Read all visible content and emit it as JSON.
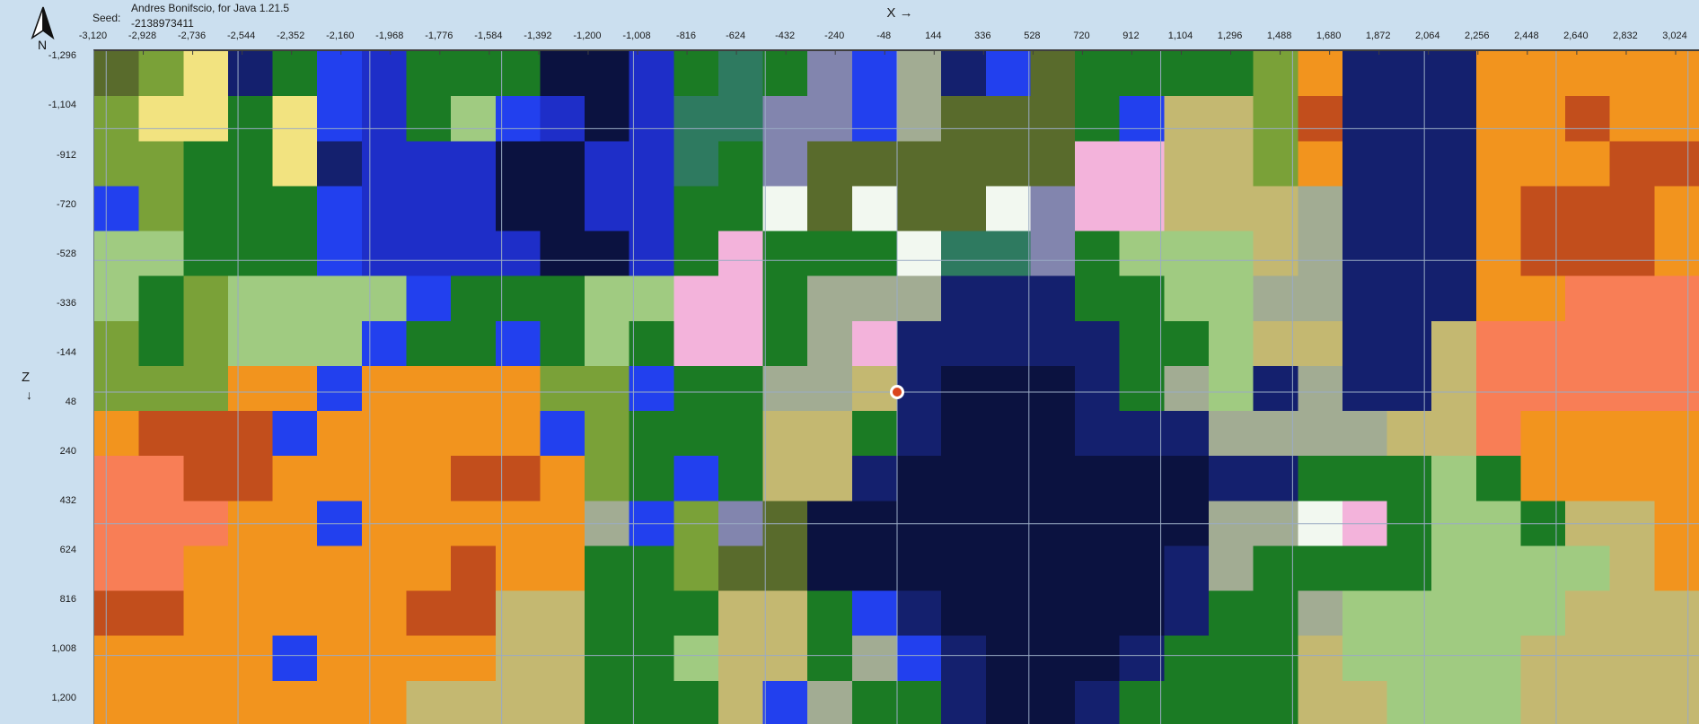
{
  "header": {
    "compass_label": "N",
    "seed_label": "Seed:",
    "seed_name": "Andres Bonifscio, for Java 1.21.5",
    "seed_value": "-2138973411"
  },
  "axes": {
    "x_axis_label": "X →",
    "z_axis_label": "Z",
    "z_axis_arrow": "↓",
    "x_ticks": [
      "-3,120",
      "-2,928",
      "-2,736",
      "-2,544",
      "-2,352",
      "-2,160",
      "-1,968",
      "-1,776",
      "-1,584",
      "-1,392",
      "-1,200",
      "-1,008",
      "-816",
      "-624",
      "-432",
      "-240",
      "-48",
      "144",
      "336",
      "528",
      "720",
      "912",
      "1,104",
      "1,296",
      "1,488",
      "1,680",
      "1,872",
      "2,064",
      "2,256",
      "2,448",
      "2,640",
      "2,832",
      "3,024"
    ],
    "z_ticks": [
      "-1,296",
      "-1,104",
      "-912",
      "-720",
      "-528",
      "-336",
      "-144",
      "48",
      "240",
      "432",
      "624",
      "816",
      "1,008",
      "1,200"
    ],
    "blocks_per_tick": 192
  },
  "colors": {
    "background": "#cbdfef",
    "grid_line": "#9aabc4",
    "map_border": "#6e7e8c",
    "text": "#1b1b1b",
    "spawn_marker_fill": "#da451c",
    "spawn_marker_ring": "#ffffff"
  },
  "map": {
    "grid_step_blocks": 512,
    "spawn_marker": {
      "world_x": 0,
      "world_z": 0
    },
    "palette": {
      "o": "#f2941e",
      "r": "#c24e1c",
      "s": "#f87e56",
      "b": "#2240ee",
      "B": "#1e2ec8",
      "n": "#14206e",
      "d": "#0b1240",
      "g": "#1b7b24",
      "t": "#2e7a60",
      "v": "#7aa138",
      "V": "#596b2c",
      "k": "#c4b871",
      "y": "#f2e380",
      "p": "#f3b3db",
      "l": "#a0cb81",
      "e": "#a2ac93",
      "u": "#8285ae",
      "w": "#f2f8f0"
    },
    "palette_names": {
      "o": "orange-desert",
      "r": "red-badlands",
      "s": "salmon-badlands",
      "b": "river-blue",
      "B": "ocean-blue",
      "n": "ocean-navy",
      "d": "deep-ocean-navy",
      "g": "forest-green",
      "t": "teal-green",
      "v": "olive-green",
      "V": "dark-olive",
      "k": "khaki-savanna",
      "y": "beach-yellow",
      "p": "pink-grove",
      "l": "light-green",
      "e": "sage-gray",
      "u": "slate-lavender",
      "w": "snow-white"
    },
    "cols": 36,
    "rows": [
      "VvyngbBgggddBgtgubenbVggggvonnnooooo",
      "vyygybBglbBdBttuubeVVVgbkkvrnnnooroo",
      "vvggynBBBddBBtguVVVVVVppkkvonnnooorr",
      "bvgggbBBBddBBggwVwVVwuppkkkennnorrro",
      "llgggbBBBBddBgpgggwttuglllkennnorrro",
      "lgvllllbgggllppgeeennngglleennnoosss",
      "vgvlllbggbglgppgepnnnnngglkknnksssss",
      "vvvooboooovvbggeekndddngelnennksssss",
      "orrrbooooobvgggkkgndddnnneeeekksoooo",
      "ssrroooorrovgbgkkndddddddnngggLgoooo",
      "sssooboooooebvuVdddddddddeewpgllgkko",
      "ssoooooorooggvVVddddddddneggggllllko",
      "rrooooorrkkgggkkgbndddddnggelllllkkk",
      "oooobooookkgglkkgebndddngggkllllkkkk",
      "oooooookkkkgggkbeggnddnggggkklllkkkk"
    ]
  }
}
